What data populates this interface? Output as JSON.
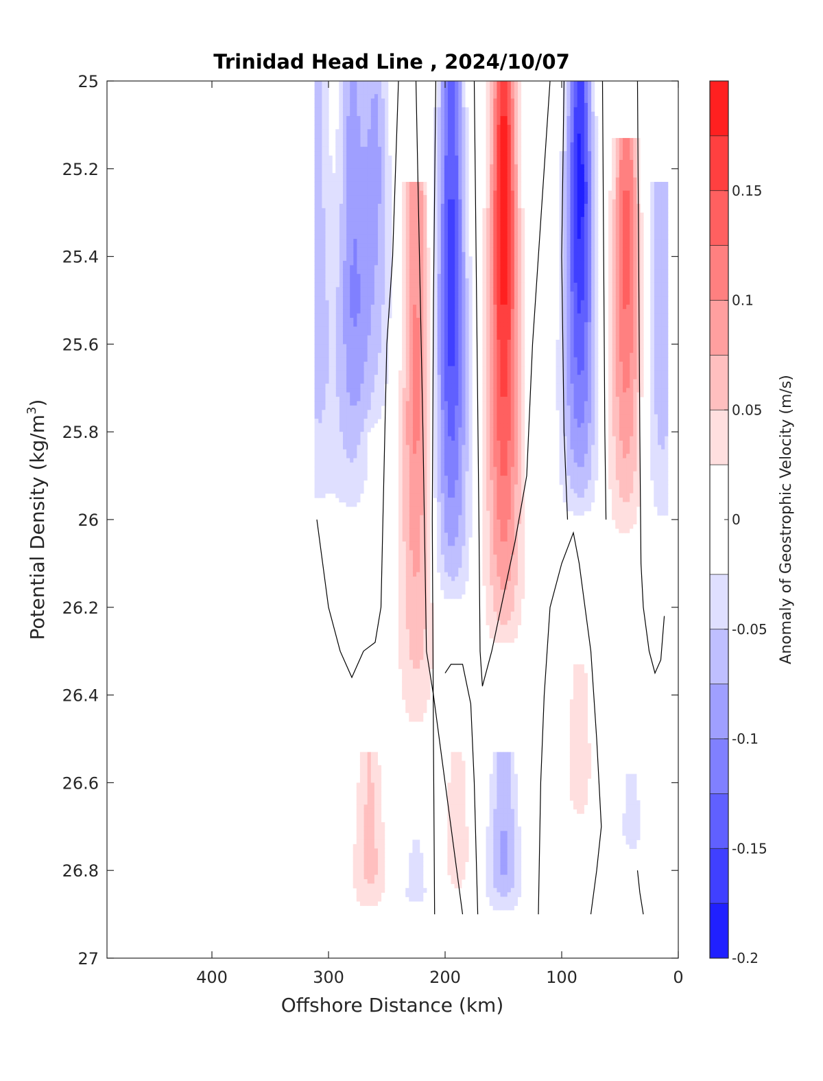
{
  "chart_data": {
    "type": "heatmap",
    "title": "Trinidad Head Line , 2024/10/07",
    "xlabel": "Offshore Distance (km)",
    "ylabel_main": "Potential Density (kg/m",
    "ylabel_sup": "3",
    "ylabel_close": ")",
    "colorbar_label": "Anomaly of Geostrophic Velocity (m/s)",
    "xlim": [
      490,
      0
    ],
    "ylim": [
      25,
      27
    ],
    "x_reversed": true,
    "y_reversed": true,
    "x_ticks": [
      400,
      300,
      200,
      100,
      0
    ],
    "x_tick_labels": [
      "400",
      "300",
      "200",
      "100",
      "0"
    ],
    "y_ticks": [
      25,
      25.2,
      25.4,
      25.6,
      25.8,
      26,
      26.2,
      26.4,
      26.6,
      26.8,
      27
    ],
    "y_tick_labels": [
      "25",
      "25.2",
      "25.4",
      "25.6",
      "25.8",
      "26",
      "26.2",
      "26.4",
      "26.6",
      "26.8",
      "27"
    ],
    "colorbar": {
      "range": [
        -0.2,
        0.2
      ],
      "ticks": [
        -0.2,
        -0.15,
        -0.1,
        -0.05,
        0,
        0.05,
        0.1,
        0.15
      ],
      "tick_labels": [
        "-0.2",
        "-0.15",
        "-0.1",
        "-0.05",
        "0",
        "0.05",
        "0.1",
        "0.15"
      ],
      "levels": [
        -0.2,
        -0.175,
        -0.15,
        -0.125,
        -0.1,
        -0.075,
        -0.05,
        -0.025,
        0.025,
        0.05,
        0.075,
        0.1,
        0.125,
        0.15,
        0.175,
        0.2
      ],
      "colors": [
        "#0000ff",
        "#2020ff",
        "#4040ff",
        "#6060ff",
        "#8080ff",
        "#9f9fff",
        "#bfbfff",
        "#dfdfff",
        "#ffffff",
        "#ffdfdf",
        "#ffbfbf",
        "#ff9f9f",
        "#ff8080",
        "#ff6060",
        "#ff4040",
        "#ff2020",
        "#ff0000"
      ]
    },
    "columns": [
      {
        "x": 310,
        "top": 25.0,
        "bottom": 26.0,
        "peak_y": 25.6,
        "peak": -0.065
      },
      {
        "x": 280,
        "top": 25.0,
        "bottom": 26.0,
        "peak_y": 25.5,
        "peak": -0.095
      },
      {
        "x": 260,
        "top": 25.0,
        "bottom": 25.8,
        "peak_y": 25.2,
        "peak": -0.085
      },
      {
        "x": 225,
        "top": 25.25,
        "bottom": 26.5,
        "peak_y": 25.75,
        "peak": 0.11
      },
      {
        "x": 195,
        "top": 25.0,
        "bottom": 26.2,
        "peak_y": 25.55,
        "peak": -0.165
      },
      {
        "x": 150,
        "top": 25.0,
        "bottom": 26.3,
        "peak_y": 25.3,
        "peak": 0.2
      },
      {
        "x": 85,
        "top": 25.0,
        "bottom": 26.0,
        "peak_y": 25.25,
        "peak": -0.19
      },
      {
        "x": 45,
        "top": 25.15,
        "bottom": 26.05,
        "peak_y": 25.4,
        "peak": 0.14
      },
      {
        "x": 15,
        "top": 25.25,
        "bottom": 26.05,
        "peak_y": 25.6,
        "peak": -0.075
      },
      {
        "x": 265,
        "top": 26.55,
        "bottom": 26.9,
        "peak_y": 26.8,
        "peak": 0.06
      },
      {
        "x": 225,
        "top": 26.75,
        "bottom": 26.9,
        "peak_y": 26.85,
        "peak": -0.035
      },
      {
        "x": 190,
        "top": 26.55,
        "bottom": 26.9,
        "peak_y": 26.75,
        "peak": 0.04
      },
      {
        "x": 150,
        "top": 26.55,
        "bottom": 26.9,
        "peak_y": 26.8,
        "peak": -0.08
      },
      {
        "x": 85,
        "top": 26.35,
        "bottom": 26.75,
        "peak_y": 26.55,
        "peak": 0.04
      },
      {
        "x": 40,
        "top": 26.6,
        "bottom": 26.8,
        "peak_y": 26.7,
        "peak": -0.035
      }
    ],
    "zero_contours": [
      [
        [
          310,
          26.0
        ],
        [
          305,
          26.1
        ],
        [
          300,
          26.2
        ],
        [
          290,
          26.3
        ],
        [
          280,
          26.36
        ],
        [
          270,
          26.3
        ],
        [
          260,
          26.28
        ],
        [
          255,
          26.2
        ],
        [
          250,
          25.6
        ],
        [
          245,
          25.4
        ],
        [
          240,
          25.0
        ]
      ],
      [
        [
          225,
          25.0
        ],
        [
          222,
          25.4
        ],
        [
          219,
          25.8
        ],
        [
          216,
          26.3
        ],
        [
          210,
          26.4
        ],
        [
          200,
          26.6
        ],
        [
          190,
          26.8
        ],
        [
          185,
          26.9
        ]
      ],
      [
        [
          208,
          25.0
        ],
        [
          210,
          25.5
        ],
        [
          211,
          26.0
        ],
        [
          210,
          26.5
        ],
        [
          209,
          26.9
        ]
      ],
      [
        [
          175,
          25.0
        ],
        [
          173,
          25.5
        ],
        [
          171,
          26.0
        ],
        [
          170,
          26.3
        ],
        [
          168,
          26.38
        ],
        [
          160,
          26.3
        ],
        [
          152,
          26.2
        ],
        [
          140,
          26.05
        ],
        [
          130,
          25.9
        ],
        [
          125,
          25.6
        ],
        [
          120,
          25.4
        ],
        [
          115,
          25.2
        ],
        [
          110,
          25.0
        ]
      ],
      [
        [
          200,
          26.35
        ],
        [
          195,
          26.33
        ],
        [
          185,
          26.33
        ],
        [
          178,
          26.42
        ],
        [
          175,
          26.6
        ],
        [
          172,
          26.9
        ]
      ],
      [
        [
          120,
          26.9
        ],
        [
          118,
          26.6
        ],
        [
          115,
          26.4
        ],
        [
          110,
          26.2
        ],
        [
          100,
          26.1
        ],
        [
          90,
          26.03
        ],
        [
          85,
          26.1
        ],
        [
          80,
          26.2
        ],
        [
          75,
          26.3
        ],
        [
          70,
          26.5
        ],
        [
          66,
          26.7
        ],
        [
          70,
          26.8
        ],
        [
          75,
          26.9
        ]
      ],
      [
        [
          98,
          25.0
        ],
        [
          100,
          25.4
        ],
        [
          98,
          25.8
        ],
        [
          95,
          26.0
        ]
      ],
      [
        [
          65,
          25.0
        ],
        [
          64,
          25.4
        ],
        [
          63,
          25.8
        ],
        [
          62,
          26.0
        ]
      ],
      [
        [
          35,
          25.0
        ],
        [
          34,
          25.4
        ],
        [
          33,
          25.8
        ],
        [
          32,
          26.1
        ],
        [
          30,
          26.2
        ],
        [
          25,
          26.3
        ],
        [
          20,
          26.35
        ],
        [
          15,
          26.32
        ],
        [
          12,
          26.22
        ]
      ],
      [
        [
          35,
          26.8
        ],
        [
          33,
          26.85
        ],
        [
          30,
          26.9
        ]
      ]
    ],
    "data_mask": {
      "x_min": 10,
      "x_max": 312,
      "y_min": 25.0,
      "y_max": 26.9
    },
    "grid": false
  }
}
